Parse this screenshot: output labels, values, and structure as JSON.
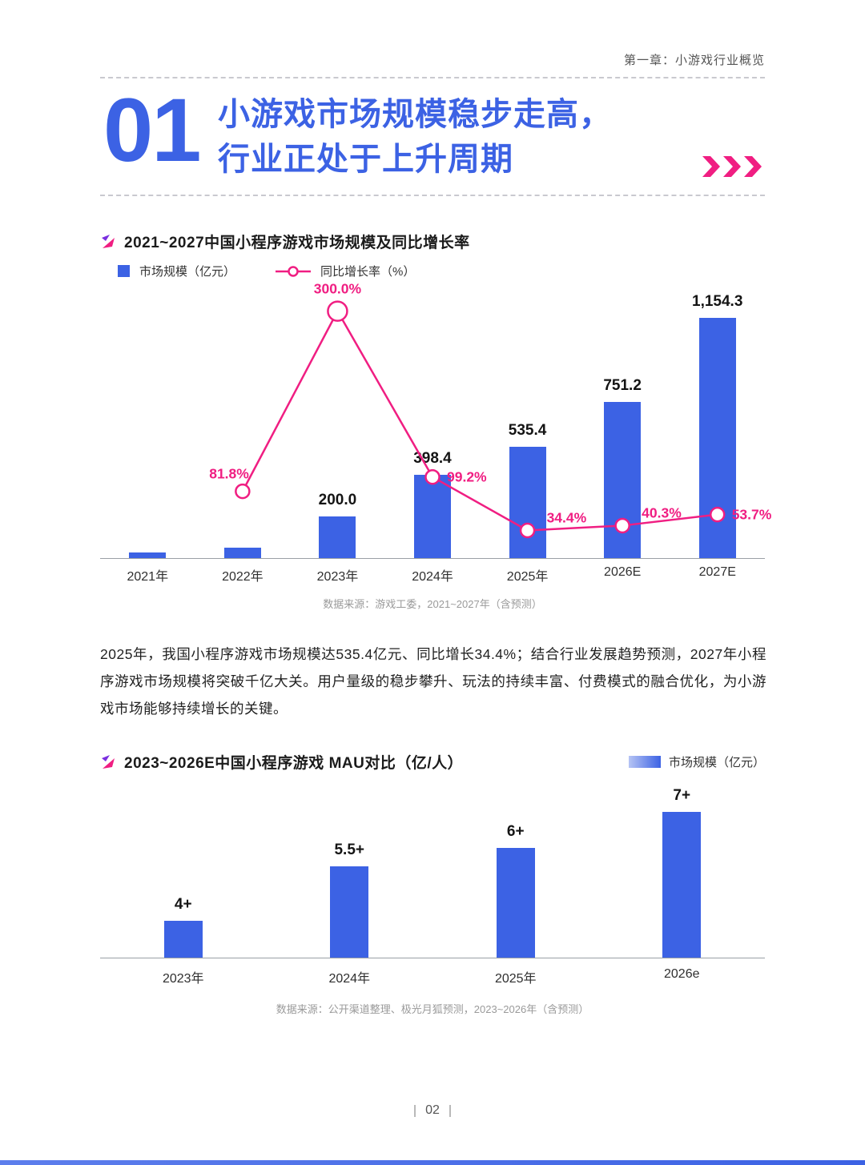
{
  "colors": {
    "blue": "#3C62E4",
    "pink": "#F01E82",
    "purple": "#7A2FE0"
  },
  "header": {
    "chapter": "第一章：小游戏行业概览"
  },
  "hero": {
    "number": "01",
    "title_line1": "小游戏市场规模稳步走高，",
    "title_line2": "行业正处于上升周期"
  },
  "chart1": {
    "title": "2021~2027中国小程序游戏市场规模及同比增长率",
    "legend_bar": "市场规模（亿元）",
    "legend_line": "同比增长率（%）",
    "source": "数据来源：游戏工委，2021~2027年（含预测）"
  },
  "paragraph": "2025年，我国小程序游戏市场规模达535.4亿元、同比增长34.4%；结合行业发展趋势预测，2027年小程序游戏市场规模将突破千亿大关。用户量级的稳步攀升、玩法的持续丰富、付费模式的融合优化，为小游戏市场能够持续增长的关键。",
  "chart2": {
    "title": "2023~2026E中国小程序游戏 MAU对比（亿/人）",
    "legend": "市场规模（亿元）",
    "source": "数据来源：公开渠道整理、极光月狐预测，2023~2026年（含预测）"
  },
  "footer": {
    "page": "02"
  },
  "chart_data": [
    {
      "type": "bar+line",
      "title": "2021~2027中国小程序游戏市场规模及同比增长率",
      "categories": [
        "2021年",
        "2022年",
        "2023年",
        "2024年",
        "2025年",
        "2026E",
        "2027E"
      ],
      "bars": {
        "name": "市场规模（亿元）",
        "values": [
          27.5,
          50,
          200.0,
          398.4,
          535.4,
          751.2,
          1154.3
        ],
        "labels": [
          "",
          "",
          "200.0",
          "398.4",
          "535.4",
          "751.2",
          "1,154.3"
        ],
        "axis_max": 1270
      },
      "line": {
        "name": "同比增长率（%）",
        "axis_max": 320,
        "points": [
          {
            "category": "2022年",
            "i": 1,
            "value": 81.8,
            "label": "81.8%",
            "pos": "top-left"
          },
          {
            "category": "2023年",
            "i": 2,
            "value": 300.0,
            "label": "300.0%",
            "pos": "top",
            "big_marker": true
          },
          {
            "category": "2024年",
            "i": 3,
            "value": 99.2,
            "label": "99.2%",
            "pos": "right"
          },
          {
            "category": "2025年",
            "i": 4,
            "value": 34.4,
            "label": "34.4%",
            "pos": "top-right"
          },
          {
            "category": "2026E",
            "i": 5,
            "value": 40.3,
            "label": "40.3%",
            "pos": "top-right"
          },
          {
            "category": "2027E",
            "i": 6,
            "value": 53.7,
            "label": "53.7%",
            "pos": "right"
          }
        ]
      },
      "legend_position": "top-left",
      "source": "数据来源：游戏工委，2021~2027年（含预测）"
    },
    {
      "type": "bar",
      "title": "2023~2026E中国小程序游戏 MAU对比（亿/人）",
      "categories": [
        "2023年",
        "2024年",
        "2025年",
        "2026e"
      ],
      "values": [
        4,
        5.5,
        6,
        7
      ],
      "labels": [
        "4+",
        "5.5+",
        "6+",
        "7+"
      ],
      "ylim": [
        3,
        7.5
      ],
      "legend": "市场规模（亿元）",
      "legend_position": "top-right",
      "source": "数据来源：公开渠道整理、极光月狐预测，2023~2026年（含预测）"
    }
  ]
}
